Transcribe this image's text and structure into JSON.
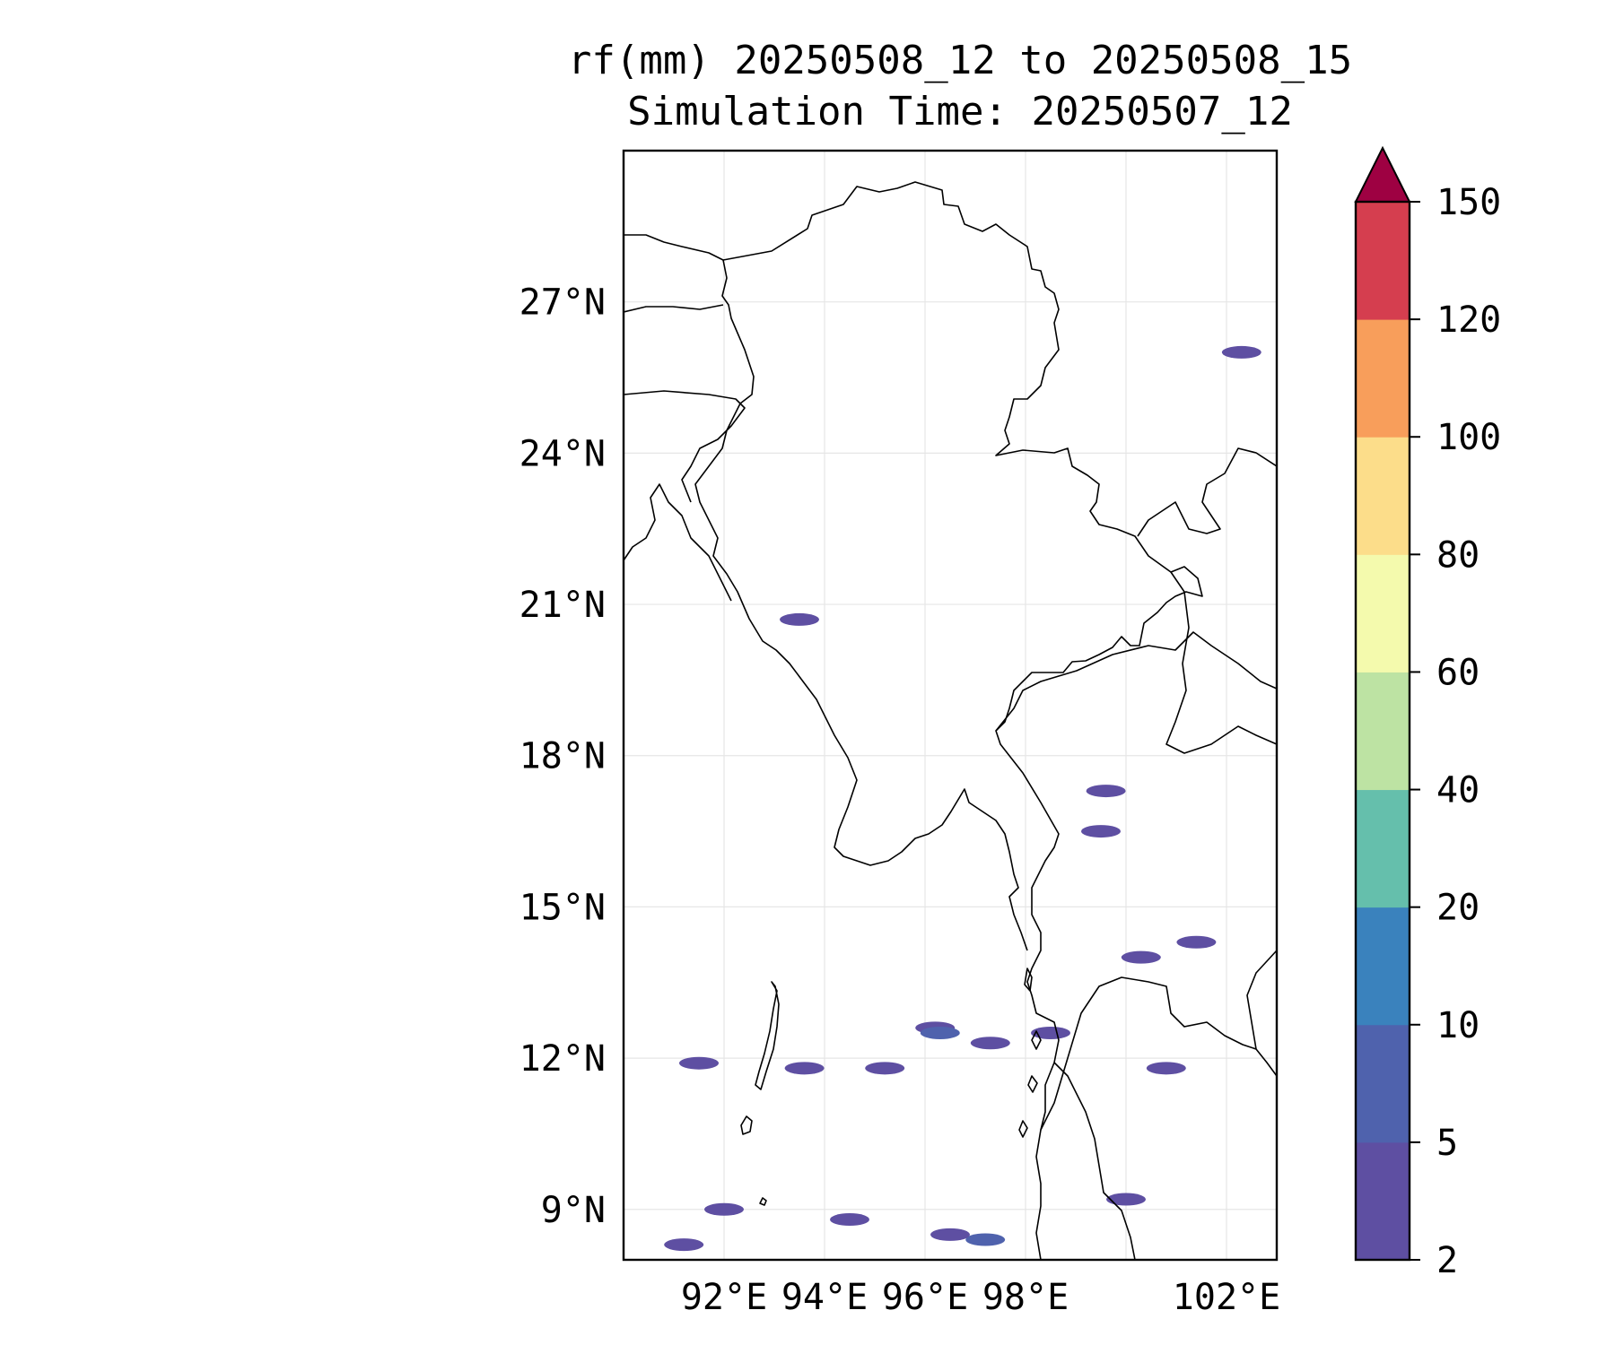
{
  "title": {
    "line1": "rf(mm) 20250508_12 to 20250508_15",
    "line2": "Simulation Time: 20250507_12"
  },
  "map": {
    "lon_range": [
      90.0,
      103.0
    ],
    "lat_range": [
      8.0,
      30.0
    ],
    "lat_ticks": [
      {
        "value": 9,
        "label": "9°N"
      },
      {
        "value": 12,
        "label": "12°N"
      },
      {
        "value": 15,
        "label": "15°N"
      },
      {
        "value": 18,
        "label": "18°N"
      },
      {
        "value": 21,
        "label": "21°N"
      },
      {
        "value": 24,
        "label": "24°N"
      },
      {
        "value": 27,
        "label": "27°N"
      }
    ],
    "lon_ticks": [
      {
        "value": 92,
        "label": "92°E"
      },
      {
        "value": 94,
        "label": "94°E"
      },
      {
        "value": 96,
        "label": "96°E"
      },
      {
        "value": 98,
        "label": "98°E"
      },
      {
        "value": 102,
        "label": "102°E"
      }
    ],
    "gridlines": true,
    "grid_lons": [
      92,
      94,
      96,
      98,
      100,
      102
    ],
    "grid_lats": [
      9,
      12,
      15,
      18,
      21,
      24,
      27
    ],
    "rain_cells": [
      {
        "lon": 96.2,
        "lat": 12.6,
        "level": 0
      },
      {
        "lon": 96.3,
        "lat": 12.5,
        "level": 1
      },
      {
        "lon": 93.6,
        "lat": 11.8,
        "level": 0
      },
      {
        "lon": 91.5,
        "lat": 11.9,
        "level": 0
      },
      {
        "lon": 95.2,
        "lat": 11.8,
        "level": 0
      },
      {
        "lon": 97.3,
        "lat": 12.3,
        "level": 0
      },
      {
        "lon": 97.2,
        "lat": 8.4,
        "level": 1
      },
      {
        "lon": 96.5,
        "lat": 8.5,
        "level": 0
      },
      {
        "lon": 94.5,
        "lat": 8.8,
        "level": 0
      },
      {
        "lon": 92.0,
        "lat": 9.0,
        "level": 0
      },
      {
        "lon": 91.2,
        "lat": 8.3,
        "level": 0
      },
      {
        "lon": 100.8,
        "lat": 11.8,
        "level": 0
      },
      {
        "lon": 100.0,
        "lat": 9.2,
        "level": 0
      },
      {
        "lon": 98.5,
        "lat": 12.5,
        "level": 0
      },
      {
        "lon": 100.3,
        "lat": 14.0,
        "level": 0
      },
      {
        "lon": 101.4,
        "lat": 14.3,
        "level": 0
      },
      {
        "lon": 99.5,
        "lat": 16.5,
        "level": 0
      },
      {
        "lon": 99.6,
        "lat": 17.3,
        "level": 0
      },
      {
        "lon": 93.5,
        "lat": 20.7,
        "level": 0
      },
      {
        "lon": 102.3,
        "lat": 26.0,
        "level": 0
      }
    ]
  },
  "colorbar": {
    "levels": [
      2,
      5,
      10,
      20,
      40,
      60,
      80,
      100,
      120,
      150
    ],
    "labels": [
      "2",
      "5",
      "10",
      "20",
      "40",
      "60",
      "80",
      "100",
      "120",
      "150"
    ],
    "colors": [
      "#5e4fa2",
      "#4f62ad",
      "#3a82bd",
      "#65bfac",
      "#bde3a3",
      "#f4faad",
      "#fcdd8a",
      "#f89e5b",
      "#d53e4f"
    ],
    "extend_color": "#9e0142",
    "extend": "max"
  },
  "colors": {
    "coastline": "#000000",
    "gridline": "#e6e6e6"
  }
}
